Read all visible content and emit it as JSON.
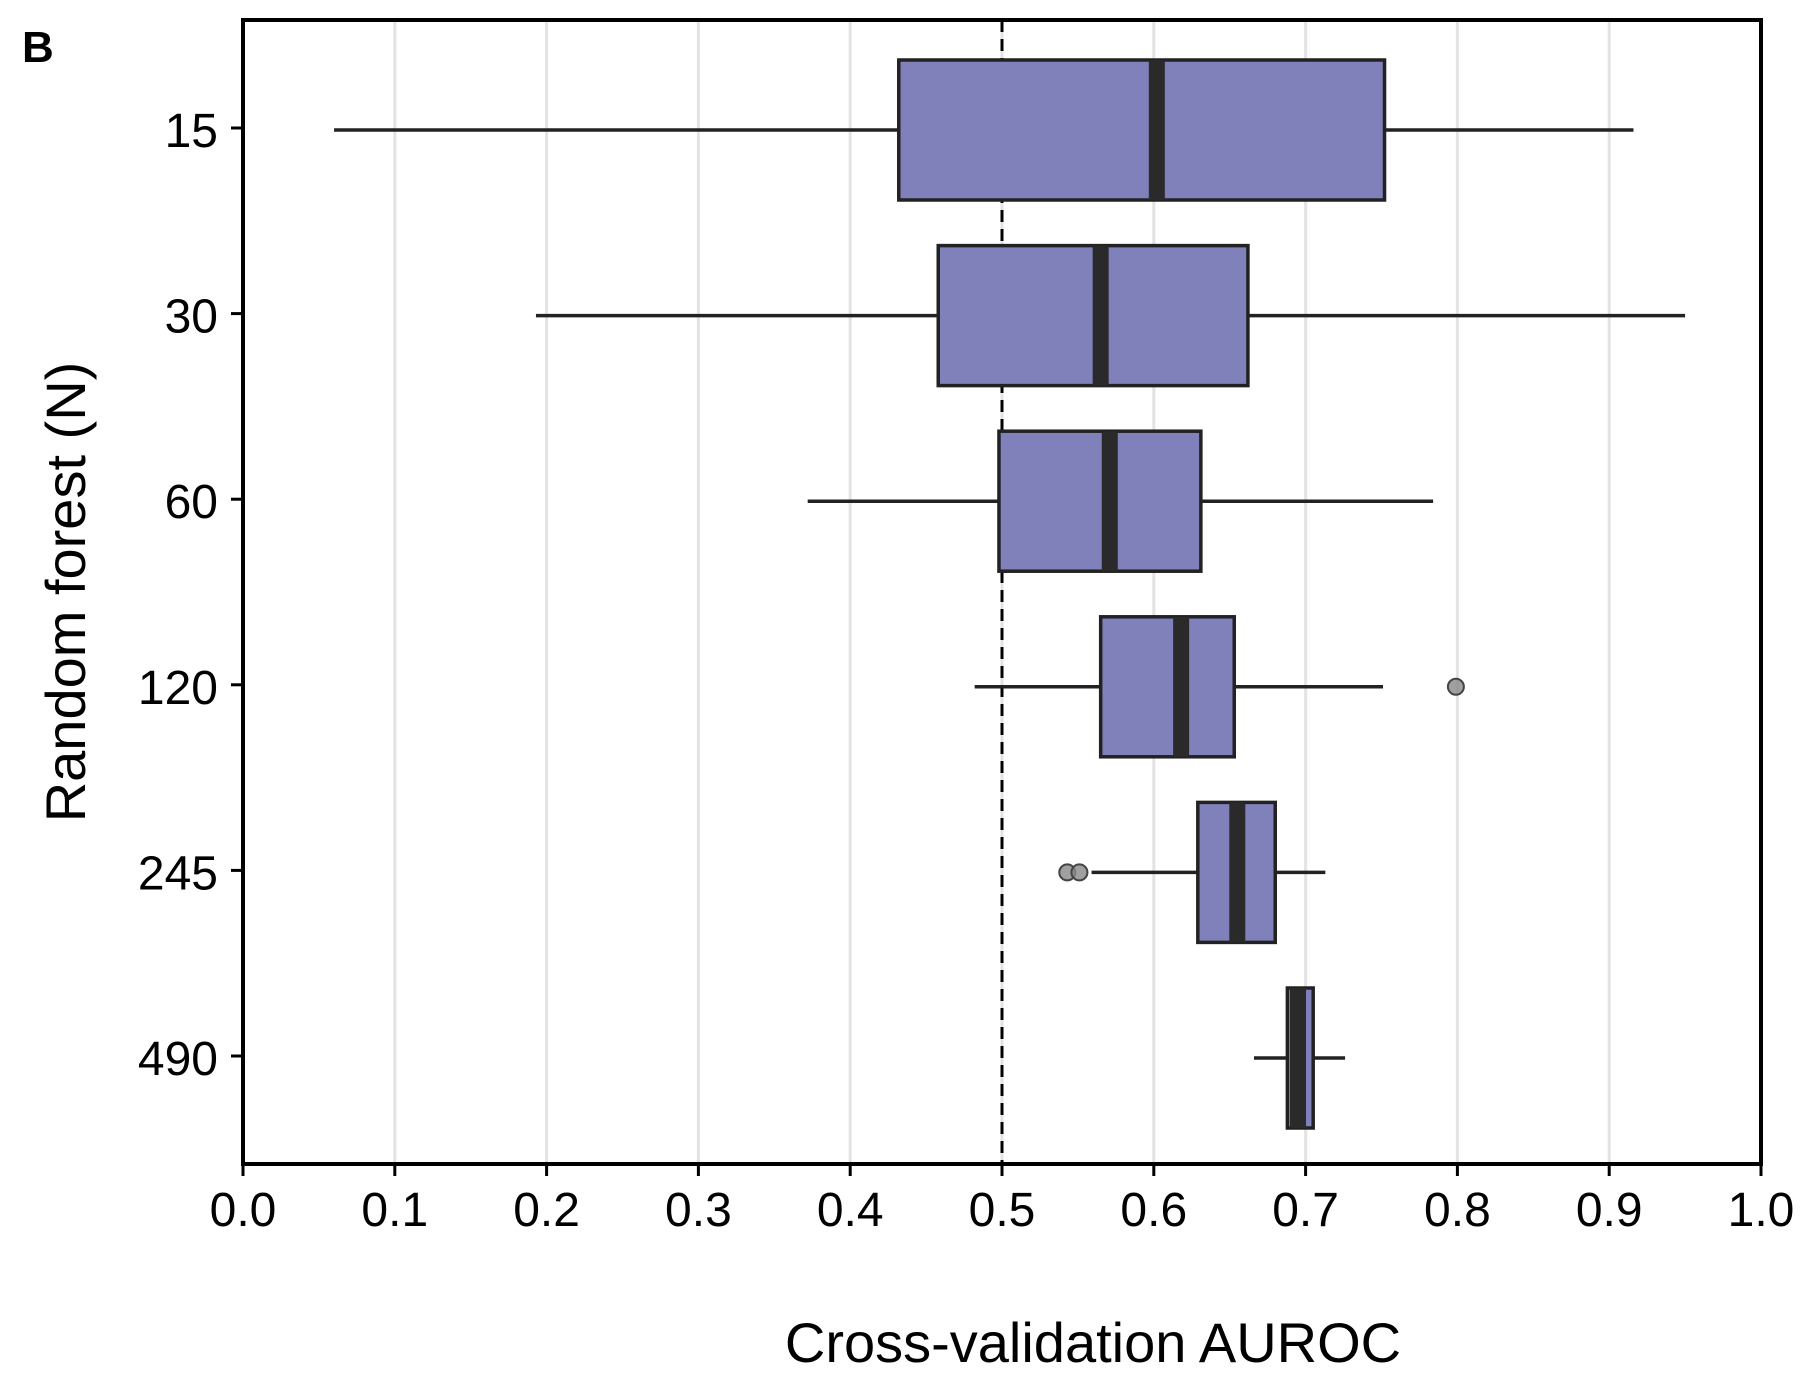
{
  "panel_label": "B",
  "chart_data": {
    "type": "boxplot",
    "orientation": "horizontal",
    "xlabel": "Cross-validation AUROC",
    "ylabel": "Random forest (N)",
    "xlim": [
      0.0,
      1.0
    ],
    "x_ticks": [
      "0.0",
      "0.1",
      "0.2",
      "0.3",
      "0.4",
      "0.5",
      "0.6",
      "0.7",
      "0.8",
      "0.9",
      "1.0"
    ],
    "categories": [
      "15",
      "30",
      "60",
      "120",
      "245",
      "490"
    ],
    "reference_line": {
      "x": 0.5,
      "style": "dashed"
    },
    "grid": "vertical",
    "box_color": "#8080bb",
    "series": [
      {
        "category": "15",
        "whisker_low": 0.06,
        "q1": 0.432,
        "median": 0.602,
        "q3": 0.752,
        "whisker_high": 0.916,
        "outliers": []
      },
      {
        "category": "30",
        "whisker_low": 0.193,
        "q1": 0.458,
        "median": 0.565,
        "q3": 0.662,
        "whisker_high": 0.95,
        "outliers": []
      },
      {
        "category": "60",
        "whisker_low": 0.372,
        "q1": 0.498,
        "median": 0.571,
        "q3": 0.631,
        "whisker_high": 0.784,
        "outliers": []
      },
      {
        "category": "120",
        "whisker_low": 0.482,
        "q1": 0.565,
        "median": 0.618,
        "q3": 0.653,
        "whisker_high": 0.751,
        "outliers": [
          0.799
        ]
      },
      {
        "category": "245",
        "whisker_low": 0.559,
        "q1": 0.629,
        "median": 0.655,
        "q3": 0.68,
        "whisker_high": 0.713,
        "outliers": [
          0.543,
          0.551
        ]
      },
      {
        "category": "490",
        "whisker_low": 0.666,
        "q1": 0.688,
        "median": 0.695,
        "q3": 0.705,
        "whisker_high": 0.726,
        "outliers": []
      }
    ]
  }
}
